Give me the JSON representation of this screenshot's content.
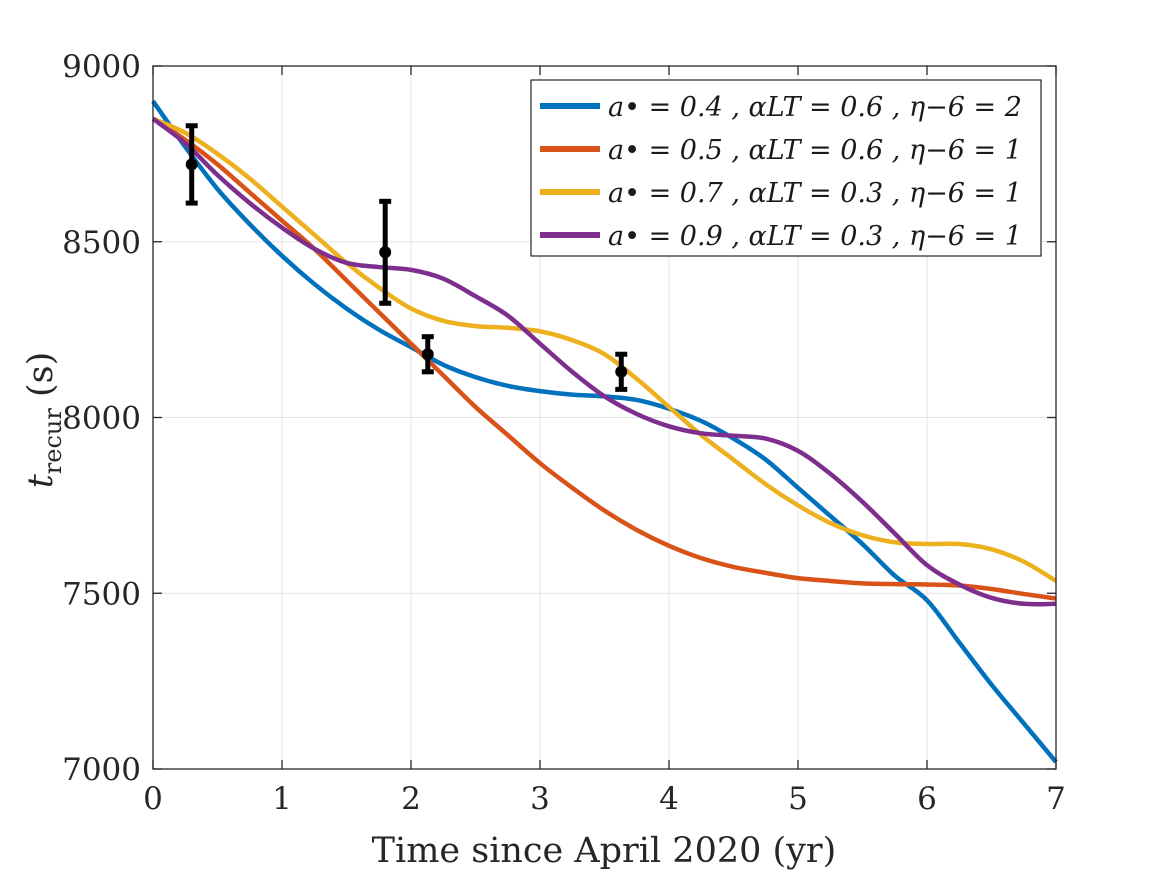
{
  "chart_data": {
    "type": "line",
    "title": "",
    "xlabel": "Time since April 2020 (yr)",
    "ylabel": {
      "main": "t",
      "sub": "recur",
      "unit": " (s)"
    },
    "xlim": [
      0,
      7
    ],
    "ylim": [
      7000,
      9000
    ],
    "xticks": [
      0,
      1,
      2,
      3,
      4,
      5,
      6,
      7
    ],
    "yticks": [
      7000,
      7500,
      8000,
      8500,
      9000
    ],
    "grid": true,
    "legend_position": "top-right",
    "colors": {
      "blue": "#0072BD",
      "orange": "#D95319",
      "yellow": "#EDB120",
      "purple": "#7E2F8E",
      "points": "#000000",
      "grid": "#e3e3e3",
      "axis": "#262626"
    },
    "series": [
      {
        "name": "a• = 0.4 , αLT = 0.6 , η−6 = 2",
        "color_key": "blue",
        "x": [
          0,
          0.25,
          0.5,
          0.75,
          1.0,
          1.25,
          1.5,
          1.75,
          2.0,
          2.25,
          2.5,
          2.75,
          3.0,
          3.25,
          3.5,
          3.75,
          4.0,
          4.25,
          4.5,
          4.75,
          5.0,
          5.25,
          5.5,
          5.75,
          6.0,
          6.25,
          6.5,
          6.75,
          7.0
        ],
        "values": [
          8900,
          8770,
          8650,
          8550,
          8460,
          8380,
          8310,
          8250,
          8200,
          8150,
          8115,
          8090,
          8075,
          8065,
          8060,
          8050,
          8025,
          7990,
          7940,
          7880,
          7800,
          7720,
          7640,
          7550,
          7480,
          7360,
          7240,
          7130,
          7020
        ]
      },
      {
        "name": "a• = 0.5 , αLT = 0.6 , η−6 = 1",
        "color_key": "orange",
        "x": [
          0,
          0.25,
          0.5,
          0.75,
          1.0,
          1.25,
          1.5,
          1.75,
          2.0,
          2.25,
          2.5,
          2.75,
          3.0,
          3.25,
          3.5,
          3.75,
          4.0,
          4.25,
          4.5,
          4.75,
          5.0,
          5.25,
          5.5,
          5.75,
          6.0,
          6.25,
          6.5,
          6.75,
          7.0
        ],
        "values": [
          8850,
          8790,
          8720,
          8640,
          8560,
          8480,
          8390,
          8300,
          8210,
          8120,
          8030,
          7950,
          7870,
          7800,
          7735,
          7680,
          7635,
          7600,
          7575,
          7558,
          7543,
          7535,
          7528,
          7526,
          7525,
          7522,
          7512,
          7498,
          7485
        ]
      },
      {
        "name": "a• = 0.7 , αLT = 0.3 , η−6 = 1",
        "color_key": "yellow",
        "x": [
          0,
          0.25,
          0.5,
          0.75,
          1.0,
          1.25,
          1.5,
          1.75,
          2.0,
          2.25,
          2.5,
          2.75,
          3.0,
          3.25,
          3.5,
          3.75,
          4.0,
          4.25,
          4.5,
          4.75,
          5.0,
          5.25,
          5.5,
          5.75,
          6.0,
          6.25,
          6.5,
          6.75,
          7.0
        ],
        "values": [
          8850,
          8810,
          8750,
          8680,
          8600,
          8520,
          8440,
          8370,
          8310,
          8275,
          8260,
          8255,
          8245,
          8220,
          8180,
          8110,
          8030,
          7950,
          7880,
          7810,
          7750,
          7700,
          7665,
          7645,
          7640,
          7640,
          7625,
          7590,
          7535
        ]
      },
      {
        "name": "a• = 0.9 , αLT = 0.3 , η−6 = 1",
        "color_key": "purple",
        "x": [
          0,
          0.25,
          0.5,
          0.75,
          1.0,
          1.25,
          1.5,
          1.75,
          2.0,
          2.25,
          2.5,
          2.75,
          3.0,
          3.25,
          3.5,
          3.75,
          4.0,
          4.25,
          4.5,
          4.75,
          5.0,
          5.25,
          5.5,
          5.75,
          6.0,
          6.25,
          6.5,
          6.75,
          7.0
        ],
        "values": [
          8850,
          8780,
          8690,
          8610,
          8540,
          8480,
          8440,
          8428,
          8420,
          8395,
          8345,
          8290,
          8210,
          8130,
          8060,
          8010,
          7975,
          7955,
          7948,
          7940,
          7905,
          7840,
          7760,
          7670,
          7580,
          7525,
          7487,
          7470,
          7470
        ]
      }
    ],
    "points": [
      {
        "x": 0.3,
        "y": 8720,
        "err": 110
      },
      {
        "x": 1.8,
        "y": 8470,
        "err": 145
      },
      {
        "x": 2.13,
        "y": 8180,
        "err": 50
      },
      {
        "x": 3.63,
        "y": 8130,
        "err": 50
      }
    ]
  }
}
